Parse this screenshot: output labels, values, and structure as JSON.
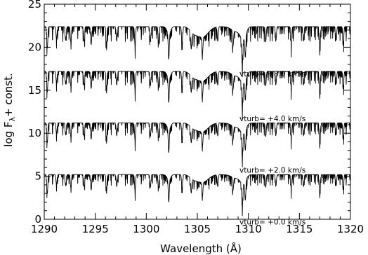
{
  "chart_data": {
    "type": "line",
    "title": "",
    "xlabel": "Wavelength (Å)",
    "ylabel_parts": {
      "prefix": "log F",
      "subscript": "λ",
      "suffix": "+ const."
    },
    "xlim": [
      1290,
      1320
    ],
    "ylim": [
      0,
      25
    ],
    "x_ticks": [
      1290,
      1295,
      1300,
      1305,
      1310,
      1315,
      1320
    ],
    "y_ticks": [
      0,
      5,
      10,
      15,
      20,
      25
    ],
    "grid": false,
    "legend": "none",
    "line_color": "#000000",
    "series": [
      {
        "annotation": "vturb=  +0.0  km/s",
        "continuum_level": 5.2,
        "lines": [
          {
            "x": 1290.3,
            "depth": 2.2
          },
          {
            "x": 1291.2,
            "depth": 1.2
          },
          {
            "x": 1292.1,
            "depth": 1.3
          },
          {
            "x": 1292.6,
            "depth": 1.5
          },
          {
            "x": 1293.9,
            "depth": 1.4
          },
          {
            "x": 1294.6,
            "depth": 1.8
          },
          {
            "x": 1296.1,
            "depth": 1.6
          },
          {
            "x": 1297.1,
            "depth": 1.4
          },
          {
            "x": 1298.9,
            "depth": 2.0
          },
          {
            "x": 1300.4,
            "depth": 1.5
          },
          {
            "x": 1301.2,
            "depth": 1.6
          },
          {
            "x": 1302.2,
            "depth": 2.6
          },
          {
            "x": 1303.5,
            "depth": 1.5
          },
          {
            "x": 1304.4,
            "depth": 1.7
          },
          {
            "x": 1305.5,
            "depth": 1.6
          },
          {
            "x": 1307.0,
            "depth": 1.4
          },
          {
            "x": 1308.5,
            "depth": 1.5
          },
          {
            "x": 1309.4,
            "depth": 2.7
          },
          {
            "x": 1309.7,
            "depth": 2.2
          },
          {
            "x": 1311.7,
            "depth": 1.5
          },
          {
            "x": 1312.7,
            "depth": 1.3
          },
          {
            "x": 1314.2,
            "depth": 1.5
          },
          {
            "x": 1315.4,
            "depth": 1.4
          },
          {
            "x": 1317.0,
            "depth": 2.4
          },
          {
            "x": 1318.6,
            "depth": 1.3
          },
          {
            "x": 1319.3,
            "depth": 1.5
          }
        ]
      },
      {
        "annotation": "vturb=  +2.0  km/s",
        "continuum_level": 11.2,
        "lines": [
          {
            "x": 1290.3,
            "depth": 2.3
          },
          {
            "x": 1291.2,
            "depth": 1.3
          },
          {
            "x": 1292.1,
            "depth": 1.4
          },
          {
            "x": 1292.6,
            "depth": 1.6
          },
          {
            "x": 1293.9,
            "depth": 1.5
          },
          {
            "x": 1294.6,
            "depth": 1.9
          },
          {
            "x": 1296.1,
            "depth": 1.7
          },
          {
            "x": 1297.1,
            "depth": 1.5
          },
          {
            "x": 1298.9,
            "depth": 2.1
          },
          {
            "x": 1300.4,
            "depth": 1.6
          },
          {
            "x": 1301.2,
            "depth": 1.7
          },
          {
            "x": 1302.2,
            "depth": 2.8
          },
          {
            "x": 1303.5,
            "depth": 1.6
          },
          {
            "x": 1304.4,
            "depth": 1.8
          },
          {
            "x": 1305.5,
            "depth": 1.7
          },
          {
            "x": 1307.0,
            "depth": 1.5
          },
          {
            "x": 1308.5,
            "depth": 1.6
          },
          {
            "x": 1309.4,
            "depth": 2.8
          },
          {
            "x": 1309.7,
            "depth": 2.3
          },
          {
            "x": 1311.7,
            "depth": 1.6
          },
          {
            "x": 1312.7,
            "depth": 1.4
          },
          {
            "x": 1314.2,
            "depth": 1.6
          },
          {
            "x": 1315.4,
            "depth": 1.5
          },
          {
            "x": 1317.0,
            "depth": 2.6
          },
          {
            "x": 1318.6,
            "depth": 1.4
          },
          {
            "x": 1319.3,
            "depth": 1.6
          }
        ]
      },
      {
        "annotation": "vturb=  +4.0  km/s",
        "continuum_level": 17.2,
        "lines": [
          {
            "x": 1290.3,
            "depth": 2.4
          },
          {
            "x": 1291.2,
            "depth": 1.4
          },
          {
            "x": 1292.1,
            "depth": 1.5
          },
          {
            "x": 1292.6,
            "depth": 1.7
          },
          {
            "x": 1293.9,
            "depth": 1.6
          },
          {
            "x": 1294.6,
            "depth": 2.0
          },
          {
            "x": 1296.1,
            "depth": 1.8
          },
          {
            "x": 1297.1,
            "depth": 1.6
          },
          {
            "x": 1298.9,
            "depth": 2.2
          },
          {
            "x": 1300.4,
            "depth": 1.7
          },
          {
            "x": 1301.2,
            "depth": 1.8
          },
          {
            "x": 1302.2,
            "depth": 2.9
          },
          {
            "x": 1303.5,
            "depth": 1.7
          },
          {
            "x": 1304.4,
            "depth": 1.9
          },
          {
            "x": 1305.5,
            "depth": 1.8
          },
          {
            "x": 1307.0,
            "depth": 1.6
          },
          {
            "x": 1308.5,
            "depth": 1.7
          },
          {
            "x": 1309.4,
            "depth": 2.9
          },
          {
            "x": 1309.7,
            "depth": 2.4
          },
          {
            "x": 1311.7,
            "depth": 1.7
          },
          {
            "x": 1312.7,
            "depth": 1.5
          },
          {
            "x": 1314.2,
            "depth": 1.7
          },
          {
            "x": 1315.4,
            "depth": 1.6
          },
          {
            "x": 1317.0,
            "depth": 2.8
          },
          {
            "x": 1318.6,
            "depth": 1.5
          },
          {
            "x": 1319.3,
            "depth": 1.7
          }
        ]
      },
      {
        "annotation": "vturb=  +8.0  km/s",
        "continuum_level": 22.4,
        "lines": [
          {
            "x": 1290.3,
            "depth": 2.5
          },
          {
            "x": 1291.2,
            "depth": 1.5
          },
          {
            "x": 1292.1,
            "depth": 1.6
          },
          {
            "x": 1292.6,
            "depth": 1.8
          },
          {
            "x": 1293.9,
            "depth": 1.7
          },
          {
            "x": 1294.6,
            "depth": 2.1
          },
          {
            "x": 1296.1,
            "depth": 1.9
          },
          {
            "x": 1297.1,
            "depth": 1.7
          },
          {
            "x": 1298.9,
            "depth": 2.3
          },
          {
            "x": 1300.4,
            "depth": 1.8
          },
          {
            "x": 1301.2,
            "depth": 1.9
          },
          {
            "x": 1302.2,
            "depth": 3.0
          },
          {
            "x": 1303.5,
            "depth": 1.8
          },
          {
            "x": 1304.4,
            "depth": 2.0
          },
          {
            "x": 1305.5,
            "depth": 1.9
          },
          {
            "x": 1307.0,
            "depth": 1.7
          },
          {
            "x": 1308.5,
            "depth": 1.8
          },
          {
            "x": 1309.4,
            "depth": 3.0
          },
          {
            "x": 1309.7,
            "depth": 2.5
          },
          {
            "x": 1311.7,
            "depth": 1.8
          },
          {
            "x": 1312.7,
            "depth": 1.6
          },
          {
            "x": 1314.2,
            "depth": 1.8
          },
          {
            "x": 1315.4,
            "depth": 1.7
          },
          {
            "x": 1317.0,
            "depth": 2.9
          },
          {
            "x": 1318.6,
            "depth": 1.6
          },
          {
            "x": 1319.3,
            "depth": 1.8
          }
        ]
      }
    ]
  }
}
